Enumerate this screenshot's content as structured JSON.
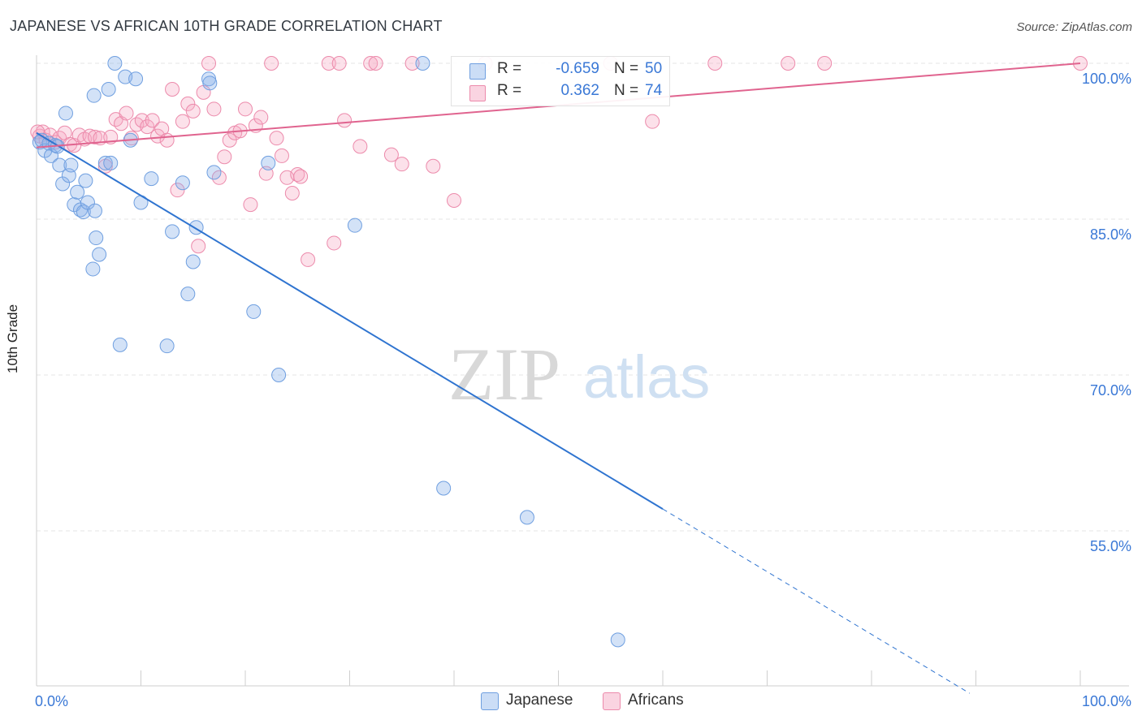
{
  "title": "JAPANESE VS AFRICAN 10TH GRADE CORRELATION CHART",
  "source": "Source: ZipAtlas.com",
  "watermark": {
    "zip": "ZIP",
    "atlas": "atlas"
  },
  "colors": {
    "japanese": "#6f9fe0",
    "japanese_fill": "rgba(140,180,235,0.38)",
    "japanese_line": "#2f74d0",
    "africans": "#ec8aab",
    "africans_fill": "rgba(245,170,195,0.35)",
    "africans_line": "#e0648f",
    "axis_text": "#3a78d6",
    "grid": "#e4e4e4"
  },
  "legend": {
    "rows": [
      {
        "series": "Japanese",
        "r_label": "R =",
        "r_value": "-0.659",
        "n_label": "N =",
        "n_value": "50"
      },
      {
        "series": "Africans",
        "r_label": "R =",
        "r_value": "0.362",
        "n_label": "N =",
        "n_value": "74"
      }
    ]
  },
  "chart_data": {
    "type": "scatter",
    "title": "JAPANESE VS AFRICAN 10TH GRADE CORRELATION CHART",
    "xlabel": "",
    "ylabel": "10th Grade",
    "xlim": [
      0,
      100
    ],
    "ylim": [
      40,
      101.5
    ],
    "x_tick_labels": [
      "0.0%",
      "100.0%"
    ],
    "y_ticks": [
      55,
      70,
      85,
      100
    ],
    "y_tick_labels": [
      "55.0%",
      "70.0%",
      "85.0%",
      "100.0%"
    ],
    "grid": true,
    "legend_position": "bottom",
    "series": [
      {
        "name": "Japanese",
        "r": -0.659,
        "n": 50,
        "trend": {
          "x0": 0,
          "y0": 93.3,
          "x1": 60,
          "y1": 57.1,
          "dash_to_x": 89.4
        },
        "points": [
          [
            0.3,
            92.4
          ],
          [
            0.5,
            92.6
          ],
          [
            0.8,
            91.6
          ],
          [
            1.2,
            92.3
          ],
          [
            1.4,
            91.1
          ],
          [
            1.8,
            92.1
          ],
          [
            2.2,
            90.2
          ],
          [
            2.5,
            88.4
          ],
          [
            2.8,
            95.2
          ],
          [
            3.1,
            89.2
          ],
          [
            3.3,
            90.2
          ],
          [
            3.6,
            86.4
          ],
          [
            3.9,
            87.6
          ],
          [
            4.2,
            85.9
          ],
          [
            4.5,
            85.7
          ],
          [
            4.7,
            88.7
          ],
          [
            4.9,
            86.6
          ],
          [
            5.5,
            96.9
          ],
          [
            5.7,
            83.2
          ],
          [
            6.0,
            81.6
          ],
          [
            5.4,
            80.2
          ],
          [
            6.6,
            90.4
          ],
          [
            6.9,
            97.5
          ],
          [
            7.1,
            90.4
          ],
          [
            7.5,
            100.0
          ],
          [
            8.5,
            98.7
          ],
          [
            9.0,
            92.6
          ],
          [
            9.5,
            98.5
          ],
          [
            10.0,
            86.6
          ],
          [
            11.0,
            88.9
          ],
          [
            13.0,
            83.8
          ],
          [
            14.0,
            88.5
          ],
          [
            14.5,
            77.8
          ],
          [
            15.0,
            80.9
          ],
          [
            15.3,
            84.2
          ],
          [
            16.5,
            98.5
          ],
          [
            16.6,
            98.1
          ],
          [
            17.0,
            89.5
          ],
          [
            20.8,
            76.1
          ],
          [
            22.2,
            90.4
          ],
          [
            23.2,
            70.0
          ],
          [
            30.5,
            84.4
          ],
          [
            37.0,
            100.0
          ],
          [
            39.0,
            59.1
          ],
          [
            47.0,
            56.3
          ],
          [
            8.0,
            72.9
          ],
          [
            12.5,
            72.8
          ],
          [
            55.7,
            44.5
          ],
          [
            2.0,
            92.0
          ],
          [
            5.6,
            85.8
          ]
        ]
      },
      {
        "name": "Africans",
        "r": 0.362,
        "n": 74,
        "trend": {
          "x0": 0,
          "y0": 91.9,
          "x1": 100,
          "y1": 100.0
        },
        "points": [
          [
            0.3,
            93.0
          ],
          [
            0.6,
            93.4
          ],
          [
            0.9,
            92.6
          ],
          [
            1.3,
            93.1
          ],
          [
            1.8,
            92.4
          ],
          [
            2.2,
            92.8
          ],
          [
            2.7,
            93.3
          ],
          [
            3.2,
            92.2
          ],
          [
            3.6,
            92.1
          ],
          [
            4.1,
            93.1
          ],
          [
            4.6,
            92.7
          ],
          [
            5.1,
            93.0
          ],
          [
            5.6,
            92.9
          ],
          [
            6.1,
            92.8
          ],
          [
            6.6,
            90.1
          ],
          [
            7.1,
            92.9
          ],
          [
            7.6,
            94.6
          ],
          [
            8.1,
            94.2
          ],
          [
            8.6,
            95.2
          ],
          [
            9.1,
            92.8
          ],
          [
            9.6,
            94.1
          ],
          [
            10.1,
            94.5
          ],
          [
            10.6,
            93.9
          ],
          [
            11.1,
            94.5
          ],
          [
            11.6,
            93.0
          ],
          [
            12.0,
            93.7
          ],
          [
            12.5,
            92.6
          ],
          [
            13.0,
            97.5
          ],
          [
            13.5,
            87.8
          ],
          [
            14.0,
            94.4
          ],
          [
            14.5,
            96.1
          ],
          [
            15.0,
            95.4
          ],
          [
            15.5,
            82.4
          ],
          [
            16.0,
            97.2
          ],
          [
            16.5,
            100.0
          ],
          [
            17.0,
            95.6
          ],
          [
            17.5,
            89.0
          ],
          [
            18.0,
            91.0
          ],
          [
            18.5,
            92.6
          ],
          [
            19.0,
            93.3
          ],
          [
            19.5,
            93.5
          ],
          [
            20.0,
            95.6
          ],
          [
            20.5,
            86.4
          ],
          [
            21.0,
            94.0
          ],
          [
            21.5,
            94.8
          ],
          [
            22.0,
            89.4
          ],
          [
            22.5,
            100.0
          ],
          [
            23.0,
            92.8
          ],
          [
            23.5,
            91.1
          ],
          [
            24.0,
            89.0
          ],
          [
            24.5,
            87.5
          ],
          [
            25.0,
            89.3
          ],
          [
            25.3,
            89.1
          ],
          [
            26.0,
            81.1
          ],
          [
            28.0,
            100.0
          ],
          [
            28.5,
            82.7
          ],
          [
            29.0,
            100.0
          ],
          [
            29.5,
            94.5
          ],
          [
            31.0,
            92.0
          ],
          [
            32.0,
            100.0
          ],
          [
            32.5,
            100.0
          ],
          [
            34.0,
            91.2
          ],
          [
            35.0,
            90.3
          ],
          [
            36.0,
            100.0
          ],
          [
            38.0,
            90.1
          ],
          [
            40.0,
            86.8
          ],
          [
            43.0,
            100.0
          ],
          [
            55.0,
            100.0
          ],
          [
            59.0,
            94.4
          ],
          [
            65.0,
            100.0
          ],
          [
            72.0,
            100.0
          ],
          [
            75.5,
            100.0
          ],
          [
            100.0,
            100.0
          ],
          [
            0.1,
            93.4
          ]
        ]
      }
    ]
  }
}
